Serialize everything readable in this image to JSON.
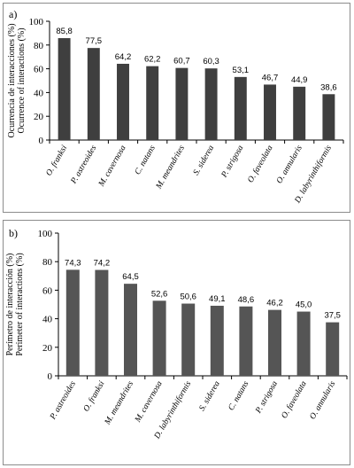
{
  "chart_data": [
    {
      "type": "bar",
      "panel_label": "a)",
      "categories": [
        "O. franksi",
        "P. astreoides",
        "M. cavernosa",
        "C. natans",
        "M. meandrites",
        "S. siderea",
        "P. strigosa",
        "O. faveolata",
        "O. annularis",
        "D. labyrinthiformis"
      ],
      "values": [
        85.8,
        77.5,
        64.2,
        62.2,
        60.7,
        60.3,
        53.1,
        46.7,
        44.9,
        38.6
      ],
      "value_labels": [
        "85,8",
        "77,5",
        "64,2",
        "62,2",
        "60,7",
        "60,3",
        "53,1",
        "46,7",
        "44,9",
        "38,6"
      ],
      "ylabel": [
        "Ocurrencia de interacciones (%)",
        "Ocurrence of interactions (%)"
      ],
      "ylim": [
        0,
        100
      ],
      "yticks": [
        "0",
        "20",
        "40",
        "60",
        "80",
        "100"
      ],
      "grid": false,
      "colors": {
        "bar": "#3f3f3f"
      }
    },
    {
      "type": "bar",
      "panel_label": "b)",
      "categories": [
        "P. astreoides",
        "O. franksi",
        "M. meandrites",
        "M. cavernosa",
        "D. labyrinthiformis",
        "S. siderea",
        "C. natans",
        "P. strigosa",
        "O. faveolata",
        "O. annularis"
      ],
      "values": [
        74.3,
        74.2,
        64.5,
        52.6,
        50.6,
        49.1,
        48.6,
        46.2,
        45.0,
        37.5
      ],
      "value_labels": [
        "74,3",
        "74,2",
        "64,5",
        "52,6",
        "50,6",
        "49,1",
        "48,6",
        "46,2",
        "45,0",
        "37,5"
      ],
      "ylabel": [
        "Perímetro de interacción (%)",
        "Perimeter of interactions (%)"
      ],
      "ylim": [
        0,
        100
      ],
      "yticks": [
        "0",
        "20",
        "40",
        "60",
        "80",
        "100"
      ],
      "grid": false,
      "colors": {
        "bar": "#555555"
      }
    }
  ]
}
